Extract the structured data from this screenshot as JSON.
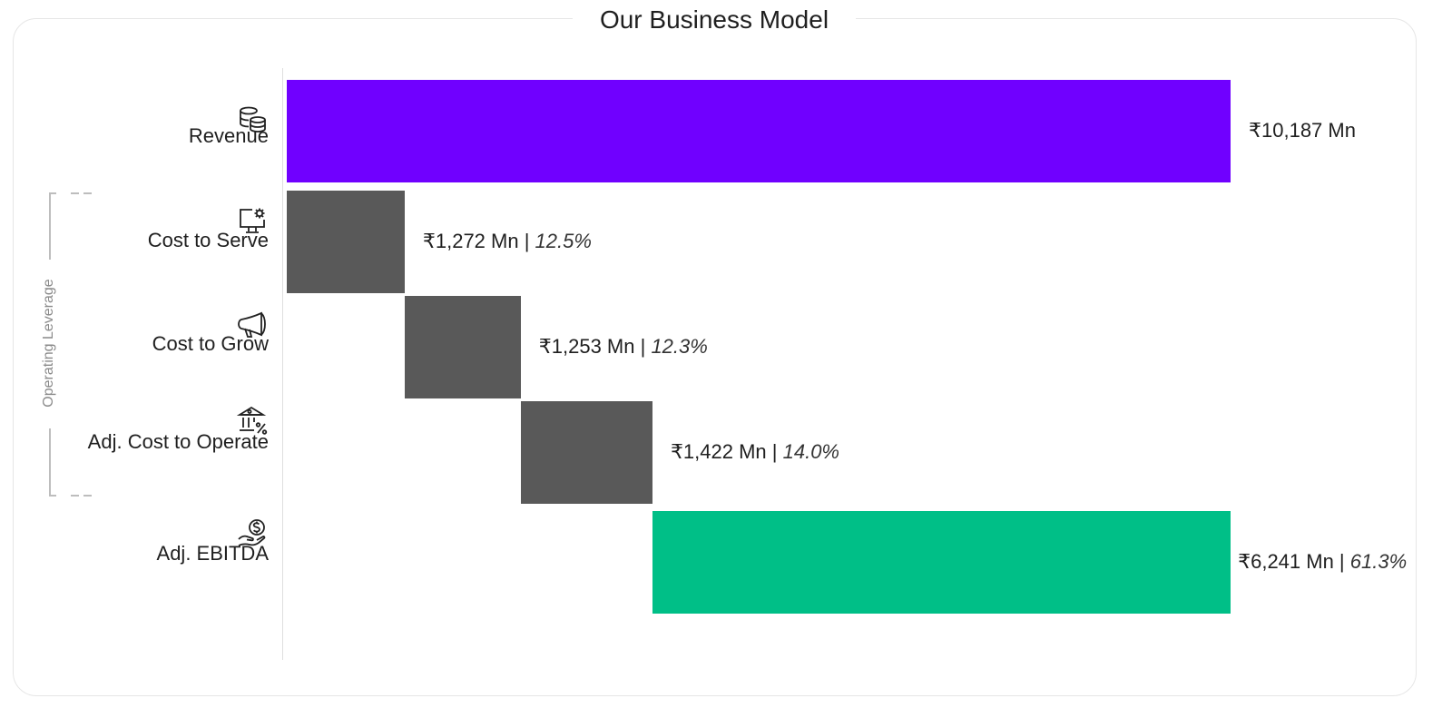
{
  "page": {
    "title": "Our Business Model",
    "bracket_label": "Operating Leverage"
  },
  "colors": {
    "revenue": "#7000ff",
    "cost": "#595959",
    "ebitda": "#00bf87",
    "bracket": "#bdbdbd"
  },
  "chart_data": {
    "type": "bar",
    "orientation": "horizontal-waterfall",
    "title": "Our Business Model",
    "unit": "₹ Mn",
    "xlim": [
      0,
      10187
    ],
    "categories": [
      "Revenue",
      "Cost to Serve",
      "Cost to Grow",
      "Adj. Cost to Operate",
      "Adj. EBITDA"
    ],
    "rows": [
      {
        "label": "Revenue",
        "icon": "database-icon",
        "value": 10187,
        "start": 0,
        "value_text": "₹10,187 Mn",
        "pct_text": "",
        "color_key": "revenue"
      },
      {
        "label": "Cost to Serve",
        "icon": "monitor-gear-icon",
        "value": 1272,
        "start": 0,
        "value_text": "₹1,272 Mn | ",
        "pct_text": "12.5%",
        "color_key": "cost"
      },
      {
        "label": "Cost to Grow",
        "icon": "megaphone-icon",
        "value": 1253,
        "start": 1272,
        "value_text": "₹1,253 Mn | ",
        "pct_text": "12.3%",
        "color_key": "cost"
      },
      {
        "label": "Adj. Cost to Operate",
        "icon": "bank-percent-icon",
        "value": 1422,
        "start": 2525,
        "value_text": "₹1,422 Mn | ",
        "pct_text": "14.0%",
        "color_key": "cost"
      },
      {
        "label": "Adj. EBITDA",
        "icon": "hand-dollar-icon",
        "value": 6241,
        "start": 3947,
        "value_text": "₹6,241 Mn | ",
        "pct_text": "61.3%",
        "color_key": "ebitda"
      }
    ]
  }
}
